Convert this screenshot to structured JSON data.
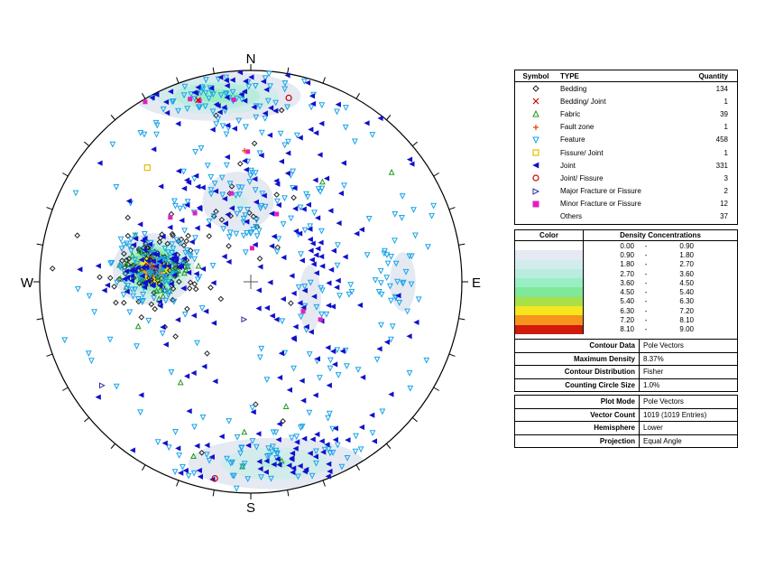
{
  "compass": {
    "n": "N",
    "e": "E",
    "s": "S",
    "w": "W"
  },
  "legend": {
    "header": {
      "symbol": "Symbol",
      "type": "TYPE",
      "quantity": "Quantity"
    },
    "rows": [
      {
        "type": "Bedding",
        "quantity": "134",
        "symbol": "diamond",
        "color": "#222222"
      },
      {
        "type": "Bedding/ Joint",
        "quantity": "1",
        "symbol": "cross",
        "color": "#cc0000"
      },
      {
        "type": "Fabric",
        "quantity": "39",
        "symbol": "triangle-up",
        "color": "#1e9b1e"
      },
      {
        "type": "Fault zone",
        "quantity": "1",
        "symbol": "plus",
        "color": "#dd4400"
      },
      {
        "type": "Feature",
        "quantity": "458",
        "symbol": "triangle-down",
        "color": "#1aa3e8"
      },
      {
        "type": "Fissure/ Joint",
        "quantity": "1",
        "symbol": "square",
        "color": "#e0c000"
      },
      {
        "type": "Joint",
        "quantity": "331",
        "symbol": "triangle-left",
        "color": "#1010cc"
      },
      {
        "type": "Joint/ Fissure",
        "quantity": "3",
        "symbol": "circle",
        "color": "#cc0000"
      },
      {
        "type": "Major Fracture or Fissure",
        "quantity": "2",
        "symbol": "triangle-right",
        "color": "#3030aa"
      },
      {
        "type": "Minor Fracture or Fissure",
        "quantity": "12",
        "symbol": "x-square",
        "color": "#e020c0"
      },
      {
        "type": "Others",
        "quantity": "37",
        "symbol": "",
        "color": "#000000"
      }
    ]
  },
  "density": {
    "header": {
      "color": "Color",
      "title": "Density Concentrations"
    },
    "rows": [
      {
        "lo": "0.00",
        "hi": "0.90",
        "color": "#ffffff"
      },
      {
        "lo": "0.90",
        "hi": "1.80",
        "color": "#e4e9f2"
      },
      {
        "lo": "1.80",
        "hi": "2.70",
        "color": "#d2ecec"
      },
      {
        "lo": "2.70",
        "hi": "3.60",
        "color": "#b9ecdf"
      },
      {
        "lo": "3.60",
        "hi": "4.50",
        "color": "#9aeec4"
      },
      {
        "lo": "4.50",
        "hi": "5.40",
        "color": "#7fe89a"
      },
      {
        "lo": "5.40",
        "hi": "6.30",
        "color": "#a8e04a"
      },
      {
        "lo": "6.30",
        "hi": "7.20",
        "color": "#f5e61e"
      },
      {
        "lo": "7.20",
        "hi": "8.10",
        "color": "#f7941d"
      },
      {
        "lo": "8.10",
        "hi": "9.00",
        "color": "#d11a0a"
      }
    ],
    "dash": "-"
  },
  "contour_info": [
    {
      "label": "Contour Data",
      "value": "Pole Vectors"
    },
    {
      "label": "Maximum Density",
      "value": "8.37%"
    },
    {
      "label": "Contour Distribution",
      "value": "Fisher"
    },
    {
      "label": "Counting Circle Size",
      "value": "1.0%"
    }
  ],
  "plot_info": [
    {
      "label": "Plot Mode",
      "value": "Pole Vectors"
    },
    {
      "label": "Vector Count",
      "value": "1019 (1019 Entries)"
    },
    {
      "label": "Hemisphere",
      "value": "Lower"
    },
    {
      "label": "Projection",
      "value": "Equal Angle"
    }
  ],
  "chart_data": {
    "type": "scatter",
    "chart_kind": "stereonet pole plot with density contours",
    "projection": "Equal Angle",
    "hemisphere": "Lower",
    "plot_mode": "Pole Vectors",
    "vector_count": 1019,
    "max_density_percent": 8.37,
    "tick_interval_deg": 10,
    "coordinates": "x = east, y = north, unit-circle units (radius 1)",
    "series": [
      {
        "name": "Bedding",
        "count": 134
      },
      {
        "name": "Bedding/ Joint",
        "count": 1
      },
      {
        "name": "Fabric",
        "count": 39
      },
      {
        "name": "Fault zone",
        "count": 1
      },
      {
        "name": "Feature",
        "count": 458
      },
      {
        "name": "Fissure/ Joint",
        "count": 1
      },
      {
        "name": "Joint",
        "count": 331
      },
      {
        "name": "Joint/ Fissure",
        "count": 3
      },
      {
        "name": "Major Fracture or Fissure",
        "count": 2
      },
      {
        "name": "Minor Fracture or Fissure",
        "count": 12
      },
      {
        "name": "Others",
        "count": 37
      }
    ],
    "clusters": [
      {
        "name": "west peak",
        "cx": -0.46,
        "cy": 0.06,
        "sx": 0.08,
        "sy": 0.07,
        "peak_density": 8.37
      },
      {
        "name": "north rim",
        "cx": -0.16,
        "cy": 0.88,
        "sx": 0.2,
        "sy": 0.06,
        "peak_density": 4.0
      },
      {
        "name": "north-central",
        "cx": -0.06,
        "cy": 0.38,
        "sx": 0.12,
        "sy": 0.1,
        "peak_density": 1.9
      },
      {
        "name": "south rim",
        "cx": 0.12,
        "cy": -0.86,
        "sx": 0.24,
        "sy": 0.07,
        "peak_density": 2.8
      },
      {
        "name": "east",
        "cx": 0.72,
        "cy": 0.0,
        "sx": 0.07,
        "sy": 0.16,
        "peak_density": 1.2
      },
      {
        "name": "center band",
        "cx": 0.28,
        "cy": -0.08,
        "sx": 0.1,
        "sy": 0.3,
        "peak_density": 1.0
      }
    ],
    "singular_points": [
      {
        "series": "Fissure/ Joint",
        "x": -0.49,
        "y": 0.54
      },
      {
        "series": "Fault zone",
        "x": -0.03,
        "y": 0.62
      },
      {
        "series": "Joint/ Fissure",
        "x": 0.18,
        "y": 0.87
      },
      {
        "series": "Joint/ Fissure",
        "x": -0.17,
        "y": -0.93
      },
      {
        "series": "Bedding/ Joint",
        "x": -0.25,
        "y": 0.86
      }
    ]
  }
}
